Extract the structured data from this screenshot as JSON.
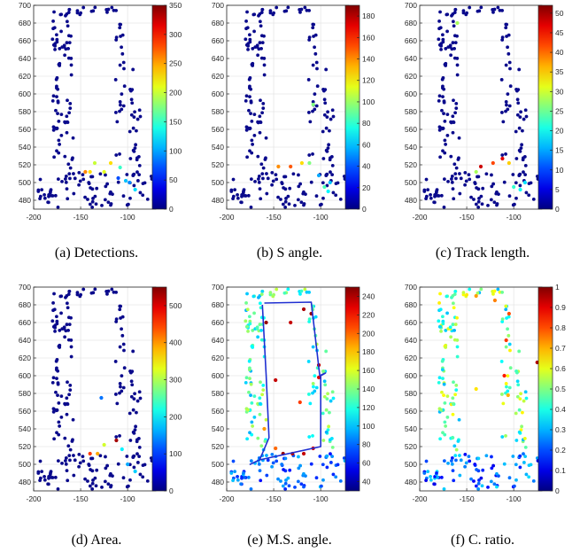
{
  "colors": {
    "marker_default": "#0a0a8c",
    "track_path": "#1f2fd1",
    "axes_box": "#262626",
    "grid": "#e6e6e6"
  },
  "axes": {
    "xlim": [
      -200,
      -70
    ],
    "ylim": [
      470,
      700
    ],
    "xticks": [
      -200,
      -150,
      -100
    ],
    "yticks": [
      480,
      500,
      520,
      540,
      560,
      580,
      600,
      620,
      640,
      660,
      680,
      700
    ]
  },
  "chart_data": [
    {
      "type": "scatter",
      "caption": "(a) Detections.",
      "colormap": "jet",
      "clim": [
        0,
        350
      ],
      "colorbar_ticks": [
        0,
        50,
        100,
        150,
        200,
        250,
        300,
        350
      ],
      "highlights": [
        [
          -140,
          512,
          230
        ],
        [
          -125,
          512,
          210
        ],
        [
          -135,
          522,
          200
        ],
        [
          -118,
          522,
          230
        ],
        [
          -108,
          517,
          150
        ],
        [
          -102,
          502,
          110
        ],
        [
          -98,
          500,
          90
        ],
        [
          -92,
          492,
          120
        ],
        [
          -110,
          505,
          70
        ],
        [
          -145,
          512,
          260
        ]
      ]
    },
    {
      "type": "scatter",
      "caption": "(b) S angle.",
      "colormap": "jet",
      "clim": [
        0,
        190
      ],
      "colorbar_ticks": [
        0,
        20,
        40,
        60,
        80,
        100,
        120,
        140,
        160,
        180
      ],
      "highlights": [
        [
          -145,
          518,
          140
        ],
        [
          -132,
          518,
          150
        ],
        [
          -120,
          522,
          125
        ],
        [
          -112,
          522,
          95
        ],
        [
          -102,
          508,
          55
        ],
        [
          -96,
          495,
          85
        ],
        [
          -92,
          490,
          70
        ],
        [
          -90,
          500,
          60
        ],
        [
          -108,
          588,
          95
        ]
      ]
    },
    {
      "type": "scatter",
      "caption": "(c) Track length.",
      "colormap": "jet",
      "clim": [
        0,
        52
      ],
      "colorbar_ticks": [
        0,
        5,
        10,
        15,
        20,
        25,
        30,
        35,
        40,
        45,
        50
      ],
      "highlights": [
        [
          -135,
          518,
          48
        ],
        [
          -122,
          522,
          42
        ],
        [
          -112,
          527,
          47
        ],
        [
          -105,
          522,
          35
        ],
        [
          -100,
          495,
          22
        ],
        [
          -93,
          492,
          20
        ],
        [
          -88,
          500,
          18
        ],
        [
          -140,
          512,
          28
        ],
        [
          -160,
          680,
          28
        ]
      ]
    },
    {
      "type": "scatter",
      "caption": "(d) Area.",
      "colormap": "jet",
      "clim": [
        0,
        550
      ],
      "colorbar_ticks": [
        0,
        100,
        200,
        300,
        400,
        500
      ],
      "highlights": [
        [
          -140,
          512,
          450
        ],
        [
          -132,
          512,
          390
        ],
        [
          -125,
          522,
          320
        ],
        [
          -112,
          527,
          530
        ],
        [
          -106,
          517,
          200
        ],
        [
          -100,
          500,
          160
        ],
        [
          -92,
          492,
          180
        ],
        [
          -128,
          575,
          130
        ]
      ]
    },
    {
      "type": "scatter",
      "caption": "(e) M.S. angle.",
      "colormap": "jet",
      "clim": [
        30,
        250
      ],
      "colorbar_ticks": [
        40,
        60,
        80,
        100,
        120,
        140,
        160,
        180,
        200,
        220,
        240
      ],
      "highlights": [
        [
          -158,
          660,
          245
        ],
        [
          -118,
          675,
          240
        ],
        [
          -110,
          670,
          245
        ],
        [
          -132,
          660,
          235
        ],
        [
          -148,
          595,
          235
        ],
        [
          -102,
          612,
          235
        ],
        [
          -102,
          598,
          230
        ],
        [
          -140,
          512,
          245
        ],
        [
          -130,
          512,
          240
        ],
        [
          -118,
          512,
          235
        ],
        [
          -108,
          518,
          230
        ],
        [
          -148,
          518,
          200
        ],
        [
          -160,
          540,
          190
        ],
        [
          -122,
          570,
          210
        ]
      ],
      "track": [
        [
          -160,
          682
        ],
        [
          -110,
          683
        ],
        [
          -101,
          600
        ],
        [
          -95,
          603
        ],
        [
          -100,
          600
        ],
        [
          -100,
          520
        ],
        [
          -165,
          505
        ],
        [
          -175,
          500
        ],
        [
          -165,
          505
        ],
        [
          -155,
          530
        ],
        [
          -158,
          600
        ],
        [
          -162,
          680
        ]
      ]
    },
    {
      "type": "scatter",
      "caption": "(f) C. ratio.",
      "colormap": "jet",
      "clim": [
        0,
        1
      ],
      "colorbar_ticks": [
        0,
        0.1,
        0.2,
        0.3,
        0.4,
        0.5,
        0.6,
        0.7,
        0.8,
        0.9,
        1
      ],
      "highlights": [
        [
          -140,
          690,
          0.72
        ],
        [
          -120,
          685,
          0.75
        ],
        [
          -105,
          670,
          0.8
        ],
        [
          -108,
          640,
          0.82
        ],
        [
          -110,
          600,
          0.85
        ],
        [
          -106,
          578,
          0.7
        ],
        [
          -140,
          585,
          0.65
        ],
        [
          -75,
          615,
          0.95
        ],
        [
          -165,
          530,
          0.45
        ]
      ]
    }
  ]
}
